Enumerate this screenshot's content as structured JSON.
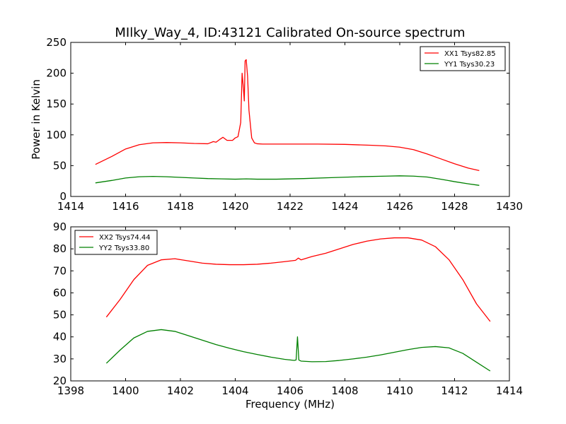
{
  "chart_data": [
    {
      "type": "line",
      "title": "MIlky_Way_4, ID:43121 Calibrated On-source spectrum",
      "xlabel": "",
      "ylabel": "Power in Kelvin",
      "xlim": [
        1414,
        1430
      ],
      "ylim": [
        0,
        250
      ],
      "xticks": [
        "1414",
        "1416",
        "1418",
        "1420",
        "1422",
        "1424",
        "1426",
        "1428",
        "1430"
      ],
      "yticks": [
        "0",
        "50",
        "100",
        "150",
        "200",
        "250"
      ],
      "grid": false,
      "legend_position": "top-right",
      "series": [
        {
          "name": "XX1 Tsys82.85",
          "color": "#ff0000",
          "x": [
            1414.9,
            1415.5,
            1416.0,
            1416.5,
            1417.0,
            1417.5,
            1418.0,
            1418.5,
            1419.0,
            1419.2,
            1419.3,
            1419.45,
            1419.55,
            1419.7,
            1419.9,
            1420.0,
            1420.1,
            1420.2,
            1420.25,
            1420.3,
            1420.33,
            1420.36,
            1420.4,
            1420.45,
            1420.5,
            1420.6,
            1420.7,
            1420.8,
            1421.0,
            1422.0,
            1423.0,
            1424.0,
            1425.0,
            1425.5,
            1426.0,
            1426.5,
            1427.0,
            1427.5,
            1428.0,
            1428.5,
            1428.9
          ],
          "y": [
            52,
            65,
            77,
            84,
            87,
            87.5,
            87,
            86,
            85.5,
            89,
            88,
            93,
            96,
            91,
            91,
            95,
            97,
            120,
            200,
            175,
            155,
            220,
            222,
            195,
            140,
            95,
            87,
            85.5,
            85,
            85,
            85,
            84.5,
            83,
            82,
            80,
            76,
            69,
            61,
            53,
            46,
            42
          ]
        },
        {
          "name": "YY1 Tsys30.23",
          "color": "#008000",
          "x": [
            1414.9,
            1415.5,
            1416.0,
            1416.5,
            1417.0,
            1417.5,
            1418.0,
            1418.5,
            1419.0,
            1419.5,
            1420.0,
            1420.4,
            1420.8,
            1421.5,
            1422.5,
            1423.5,
            1424.5,
            1425.5,
            1426.0,
            1426.5,
            1427.0,
            1427.5,
            1428.0,
            1428.5,
            1428.9
          ],
          "y": [
            22,
            26,
            30,
            32,
            32.5,
            32,
            31,
            30,
            29,
            28.5,
            28,
            28.5,
            28,
            28,
            29,
            30.5,
            32,
            33,
            33.5,
            33,
            31.5,
            28,
            24,
            20.5,
            18
          ]
        }
      ]
    },
    {
      "type": "line",
      "title": "",
      "xlabel": "Frequency (MHz)",
      "ylabel": "",
      "xlim": [
        1398,
        1414
      ],
      "ylim": [
        20,
        90
      ],
      "xticks": [
        "1398",
        "1400",
        "1402",
        "1404",
        "1406",
        "1408",
        "1410",
        "1412",
        "1414"
      ],
      "yticks": [
        "20",
        "30",
        "40",
        "50",
        "60",
        "70",
        "80",
        "90"
      ],
      "grid": false,
      "legend_position": "top-left",
      "series": [
        {
          "name": "XX2 Tsys74.44",
          "color": "#ff0000",
          "x": [
            1399.3,
            1399.8,
            1400.3,
            1400.8,
            1401.3,
            1401.8,
            1402.3,
            1402.8,
            1403.3,
            1403.8,
            1404.3,
            1404.8,
            1405.3,
            1405.8,
            1406.2,
            1406.3,
            1406.4,
            1406.8,
            1407.3,
            1407.8,
            1408.3,
            1408.8,
            1409.3,
            1409.8,
            1410.3,
            1410.8,
            1411.3,
            1411.8,
            1412.3,
            1412.8,
            1413.3
          ],
          "y": [
            49,
            57,
            66,
            72.5,
            75,
            75.5,
            74.5,
            73.5,
            73,
            72.8,
            72.8,
            73,
            73.5,
            74.2,
            74.8,
            75.8,
            75,
            76.5,
            78,
            80,
            82,
            83.5,
            84.5,
            85,
            85,
            84,
            81,
            75,
            66,
            55,
            47
          ]
        },
        {
          "name": "YY2 Tsys33.80",
          "color": "#008000",
          "x": [
            1399.3,
            1399.8,
            1400.3,
            1400.8,
            1401.3,
            1401.8,
            1402.3,
            1402.8,
            1403.3,
            1403.8,
            1404.3,
            1404.8,
            1405.3,
            1405.8,
            1406.15,
            1406.22,
            1406.27,
            1406.32,
            1406.4,
            1406.8,
            1407.3,
            1407.8,
            1408.3,
            1408.8,
            1409.3,
            1409.8,
            1410.3,
            1410.8,
            1411.3,
            1411.8,
            1412.3,
            1412.8,
            1413.3
          ],
          "y": [
            28,
            34,
            39.5,
            42.5,
            43.3,
            42.5,
            40.5,
            38.5,
            36.5,
            34.8,
            33.3,
            32,
            30.8,
            29.8,
            29.3,
            29.5,
            40,
            29.5,
            29,
            28.7,
            28.8,
            29.3,
            30,
            30.8,
            31.8,
            33,
            34.2,
            35.2,
            35.6,
            35,
            32.5,
            28.5,
            24.5
          ]
        }
      ]
    }
  ]
}
